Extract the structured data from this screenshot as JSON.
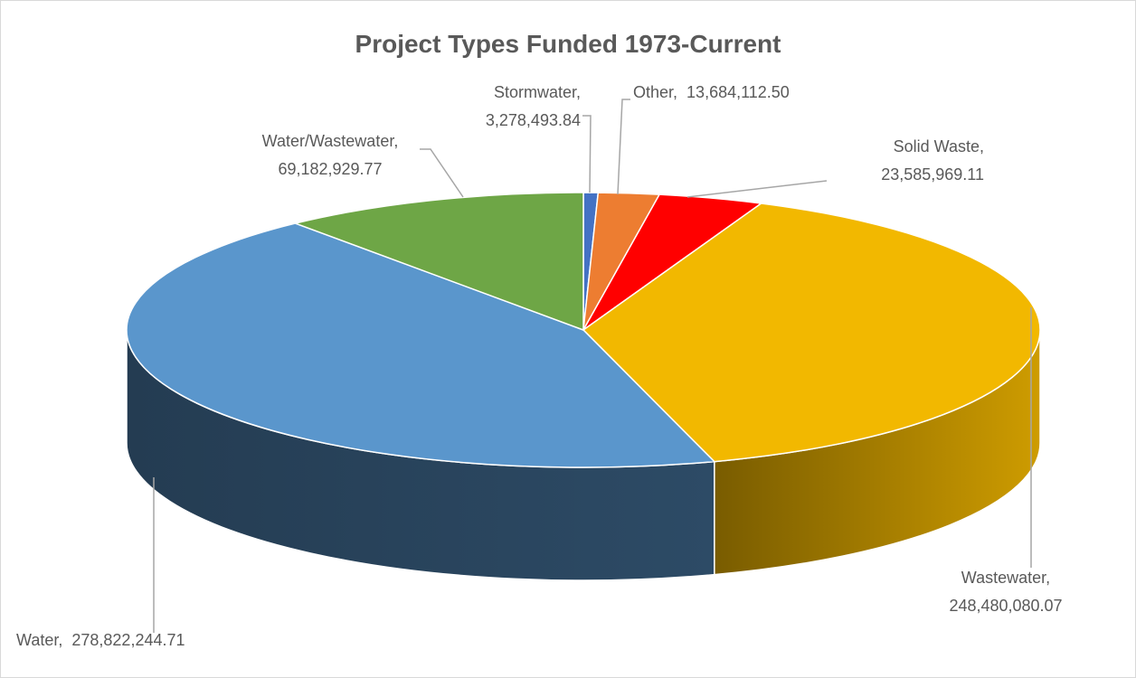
{
  "chart_data": {
    "type": "pie3d",
    "title": "Project Types Funded 1973-Current",
    "categories": [
      "Stormwater",
      "Other",
      "Solid Waste",
      "Wastewater",
      "Water",
      "Water/Wastewater"
    ],
    "values": [
      3278493.84,
      13684112.5,
      23585969.11,
      248480080.07,
      278822244.71,
      69182929.77
    ],
    "value_labels": [
      "3,278,493.84",
      "13,684,112.50",
      "23,585,969.11",
      "248,480,080.07",
      "278,822,244.71",
      "69,182,929.77"
    ],
    "label_separator": ",",
    "colors": [
      "#4472c4",
      "#ed7d31",
      "#ff0000",
      "#f2b800",
      "#5a96cc",
      "#6ea646"
    ]
  }
}
